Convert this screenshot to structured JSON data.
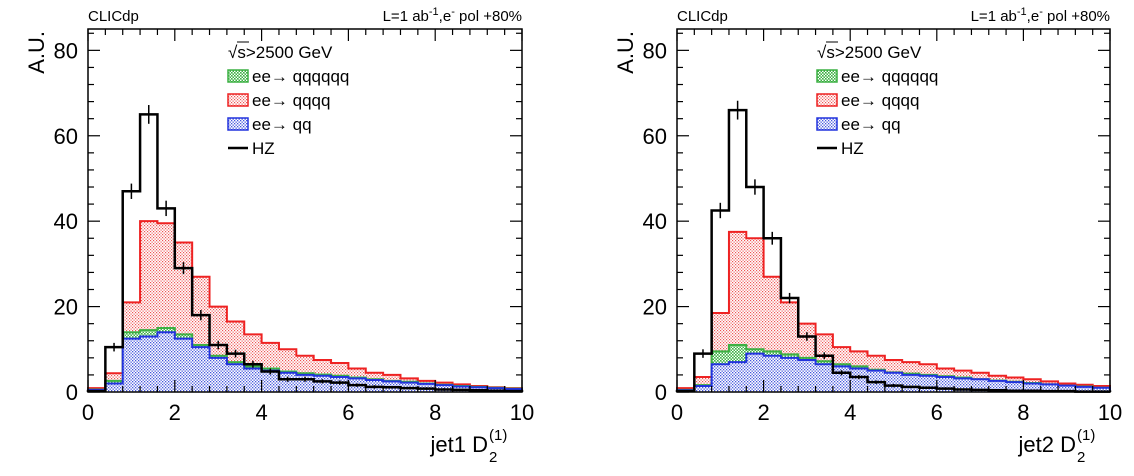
{
  "chart_data": [
    {
      "type": "histogram",
      "header_left": "CLICdp",
      "header_right": {
        "prefix": "L=1 ab",
        "sup1": "-1",
        "mid": ",e",
        "sup2": "-",
        "suffix": " pol +80%"
      },
      "xlabel": {
        "main": "jet1 D",
        "sub": "2",
        "sup": "(1)"
      },
      "ylabel": "A.U.",
      "xlim": [
        0,
        10
      ],
      "ylim": [
        0,
        85
      ],
      "xticks": [
        0,
        2,
        4,
        6,
        8,
        10
      ],
      "yticks": [
        0,
        20,
        40,
        60,
        80
      ],
      "legend_header": {
        "root": "√",
        "rest": "s>2500 GeV"
      },
      "bin_edges": [
        0,
        0.4,
        0.8,
        1.2,
        1.6,
        2.0,
        2.4,
        2.8,
        3.2,
        3.6,
        4.0,
        4.4,
        4.8,
        5.2,
        5.6,
        6.0,
        6.4,
        6.8,
        7.2,
        7.6,
        8.0,
        8.4,
        8.8,
        9.2,
        9.6,
        10.0
      ],
      "series": [
        {
          "name": "ee→ qqqqqq",
          "kind": "stack",
          "color": "#3cb043",
          "values": [
            0.6,
            2.6,
            14.0,
            14.5,
            15.0,
            13.5,
            11.0,
            8.5,
            7.0,
            6.0,
            5.5,
            4.8,
            4.4,
            4.1,
            3.8,
            3.4,
            3.0,
            2.6,
            2.4,
            2.0,
            1.7,
            1.4,
            1.2,
            1.0,
            0.8
          ]
        },
        {
          "name": "ee→ qqqq",
          "kind": "stack",
          "color": "#ee2222",
          "values": [
            0.9,
            4.4,
            21.0,
            40.0,
            39.5,
            35.0,
            27.0,
            20.0,
            16.5,
            13.5,
            11.5,
            10.0,
            8.5,
            7.5,
            6.8,
            5.5,
            4.5,
            4.0,
            3.2,
            2.6,
            2.2,
            1.8,
            1.4,
            1.1,
            0.9
          ]
        },
        {
          "name": "ee→ qq",
          "kind": "stack",
          "color": "#2233dd",
          "values": [
            0.5,
            2.0,
            12.5,
            13.0,
            14.0,
            12.5,
            10.5,
            8.0,
            6.5,
            5.5,
            5.0,
            4.5,
            4.0,
            3.8,
            3.5,
            3.2,
            2.8,
            2.5,
            2.2,
            1.9,
            1.6,
            1.3,
            1.1,
            0.9,
            0.7
          ]
        },
        {
          "name": "HZ",
          "kind": "line",
          "color": "#000000",
          "values": [
            0.2,
            10.5,
            47.0,
            65.0,
            43.0,
            29.0,
            18.0,
            11.0,
            9.0,
            6.5,
            4.8,
            3.0,
            3.0,
            2.5,
            2.2,
            1.6,
            1.2,
            1.1,
            0.9,
            0.8,
            0.6,
            0.5,
            0.4,
            0.3,
            0.2
          ],
          "errors": [
            0.2,
            1.0,
            1.8,
            2.2,
            1.8,
            1.4,
            1.2,
            1.0,
            0.9,
            0.8,
            0.7,
            0.6,
            0.6,
            0.5,
            0.5,
            0.4,
            0.4,
            0.3,
            0.3,
            0.3,
            0.3,
            0.2,
            0.2,
            0.2,
            0.2
          ]
        }
      ]
    },
    {
      "type": "histogram",
      "header_left": "CLICdp",
      "header_right": {
        "prefix": "L=1 ab",
        "sup1": "-1",
        "mid": ",e",
        "sup2": "-",
        "suffix": " pol +80%"
      },
      "xlabel": {
        "main": "jet2 D",
        "sub": "2",
        "sup": "(1)"
      },
      "ylabel": "A.U.",
      "xlim": [
        0,
        10
      ],
      "ylim": [
        0,
        85
      ],
      "xticks": [
        0,
        2,
        4,
        6,
        8,
        10
      ],
      "yticks": [
        0,
        20,
        40,
        60,
        80
      ],
      "legend_header": {
        "root": "√",
        "rest": "s>2500 GeV"
      },
      "bin_edges": [
        0,
        0.4,
        0.8,
        1.2,
        1.6,
        2.0,
        2.4,
        2.8,
        3.2,
        3.6,
        4.0,
        4.4,
        4.8,
        5.2,
        5.6,
        6.0,
        6.4,
        6.8,
        7.2,
        7.6,
        8.0,
        8.4,
        8.8,
        9.2,
        9.6,
        10.0
      ],
      "series": [
        {
          "name": "ee→ qqqqqq",
          "kind": "stack",
          "color": "#3cb043",
          "values": [
            0.5,
            1.6,
            9.5,
            11.0,
            10.0,
            9.5,
            8.8,
            8.0,
            7.2,
            6.5,
            6.0,
            5.2,
            4.6,
            4.3,
            4.0,
            3.7,
            3.4,
            3.0,
            2.7,
            2.4,
            2.1,
            1.8,
            1.5,
            1.3,
            1.0
          ]
        },
        {
          "name": "ee→ qqqq",
          "kind": "stack",
          "color": "#ee2222",
          "values": [
            0.9,
            3.5,
            18.5,
            37.5,
            36.0,
            27.0,
            21.0,
            16.0,
            13.5,
            10.5,
            9.5,
            8.5,
            7.5,
            7.0,
            6.5,
            5.5,
            5.0,
            4.5,
            3.8,
            3.4,
            3.0,
            2.5,
            2.0,
            1.7,
            1.4
          ]
        },
        {
          "name": "ee→ qq",
          "kind": "stack",
          "color": "#2233dd",
          "values": [
            0.4,
            1.4,
            6.5,
            7.0,
            9.0,
            8.5,
            8.0,
            7.5,
            6.5,
            6.0,
            5.5,
            5.0,
            4.5,
            4.0,
            3.8,
            3.5,
            3.2,
            3.0,
            2.6,
            2.3,
            2.0,
            1.8,
            1.5,
            1.2,
            1.0
          ]
        },
        {
          "name": "HZ",
          "kind": "line",
          "color": "#000000",
          "values": [
            0.2,
            9.0,
            42.5,
            66.0,
            48.0,
            36.0,
            22.0,
            13.0,
            8.5,
            4.5,
            3.5,
            2.3,
            1.5,
            1.2,
            1.0,
            0.8,
            0.6,
            0.5,
            0.4,
            0.3,
            0.3,
            0.2,
            0.2,
            0.1,
            0.1
          ],
          "errors": [
            0.2,
            1.0,
            1.8,
            2.2,
            1.8,
            1.5,
            1.2,
            1.0,
            0.8,
            0.6,
            0.5,
            0.4,
            0.4,
            0.3,
            0.3,
            0.3,
            0.2,
            0.2,
            0.2,
            0.2,
            0.2,
            0.1,
            0.1,
            0.1,
            0.1
          ]
        }
      ]
    }
  ]
}
